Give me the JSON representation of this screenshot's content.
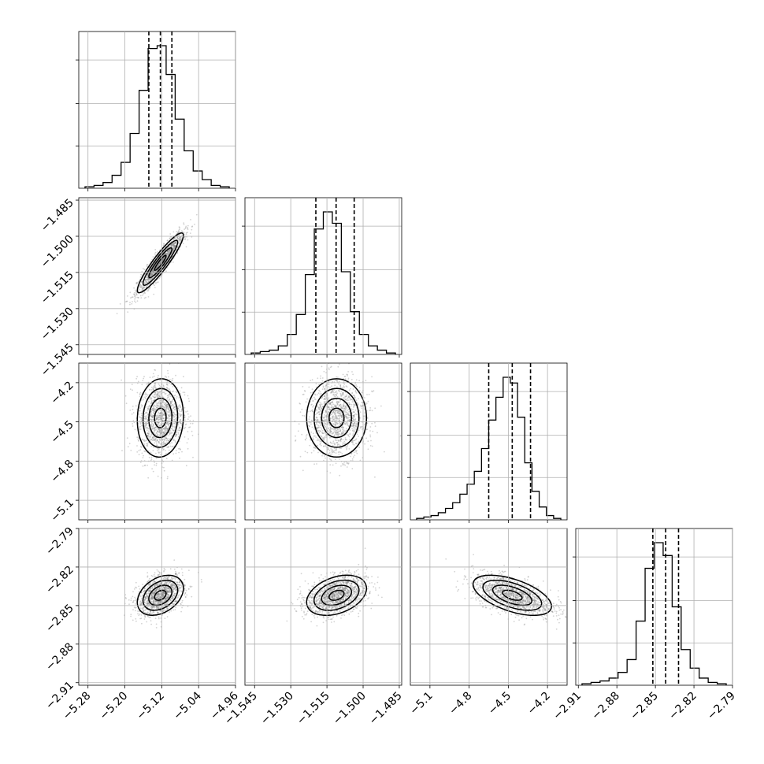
{
  "chart_data": {
    "type": "corner",
    "title": "",
    "axes_params": [
      {
        "id": "p0",
        "range": [
          -5.3,
          -4.96
        ],
        "ticks": [
          -5.28,
          -5.2,
          -5.12,
          -5.04,
          -4.96
        ],
        "tick_labels": [
          "−5.28",
          "−5.20",
          "−5.12",
          "−5.04",
          "−4.96"
        ]
      },
      {
        "id": "p1",
        "range": [
          -1.549,
          -1.484
        ],
        "ticks": [
          -1.545,
          -1.53,
          -1.515,
          -1.5,
          -1.485
        ],
        "tick_labels": [
          "−1.545",
          "−1.530",
          "−1.515",
          "−1.500",
          "−1.485"
        ]
      },
      {
        "id": "p2",
        "range": [
          -5.25,
          -4.05
        ],
        "ticks": [
          -5.1,
          -4.8,
          -4.5,
          -4.2
        ],
        "tick_labels": [
          "−5.1",
          "−4.8",
          "−4.5",
          "−4.2"
        ]
      },
      {
        "id": "p3",
        "range": [
          -2.912,
          -2.79
        ],
        "ticks": [
          -2.91,
          -2.88,
          -2.85,
          -2.82,
          -2.79
        ],
        "tick_labels": [
          "−2.91",
          "−2.88",
          "−2.85",
          "−2.82",
          "−2.79"
        ]
      }
    ],
    "marginals": [
      {
        "param": 0,
        "quantiles": [
          -5.148,
          -5.123,
          -5.098
        ],
        "counts": [
          1,
          2,
          4,
          9,
          18,
          38,
          68,
          97,
          99,
          79,
          48,
          26,
          12,
          6,
          2,
          1
        ]
      },
      {
        "param": 1,
        "quantiles": [
          -1.5196,
          -1.5112,
          -1.5037
        ],
        "counts": [
          1,
          2,
          3,
          6,
          14,
          28,
          56,
          88,
          100,
          92,
          58,
          30,
          14,
          6,
          3,
          1
        ]
      },
      {
        "param": 2,
        "quantiles": [
          -4.65,
          -4.47,
          -4.33
        ],
        "counts": [
          1,
          2,
          3,
          5,
          8,
          12,
          18,
          25,
          34,
          50,
          70,
          86,
          100,
          96,
          72,
          40,
          20,
          9,
          3,
          1
        ]
      },
      {
        "param": 3,
        "quantiles": [
          -2.852,
          -2.842,
          -2.832
        ],
        "counts": [
          1,
          2,
          3,
          5,
          9,
          18,
          45,
          82,
          100,
          91,
          55,
          25,
          12,
          5,
          2,
          1
        ]
      }
    ],
    "joint_distributions": [
      {
        "x_param": 0,
        "y_param": 1,
        "mean": [
          -5.123,
          -1.511
        ],
        "sd": [
          0.025,
          0.0062
        ],
        "corr": 0.92
      },
      {
        "x_param": 0,
        "y_param": 2,
        "mean": [
          -5.123,
          -4.47
        ],
        "sd": [
          0.025,
          0.15
        ],
        "corr": 0.05
      },
      {
        "x_param": 1,
        "y_param": 2,
        "mean": [
          -1.511,
          -4.47
        ],
        "sd": [
          0.0062,
          0.15
        ],
        "corr": 0.0
      },
      {
        "x_param": 0,
        "y_param": 3,
        "mean": [
          -5.123,
          -2.842
        ],
        "sd": [
          0.025,
          0.0078
        ],
        "corr": 0.35
      },
      {
        "x_param": 1,
        "y_param": 3,
        "mean": [
          -1.511,
          -2.842
        ],
        "sd": [
          0.0062,
          0.0078
        ],
        "corr": 0.35
      },
      {
        "x_param": 2,
        "y_param": 3,
        "mean": [
          -4.47,
          -2.842
        ],
        "sd": [
          0.15,
          0.0078
        ],
        "corr": -0.55
      }
    ],
    "contour_levels_sigma": [
      0.5,
      1.0,
      1.5,
      2.0
    ],
    "grid": true,
    "colors": {
      "line": "#000000",
      "grid": "#b0b0b0",
      "scatter": "#808080",
      "frame": "#000000"
    }
  }
}
